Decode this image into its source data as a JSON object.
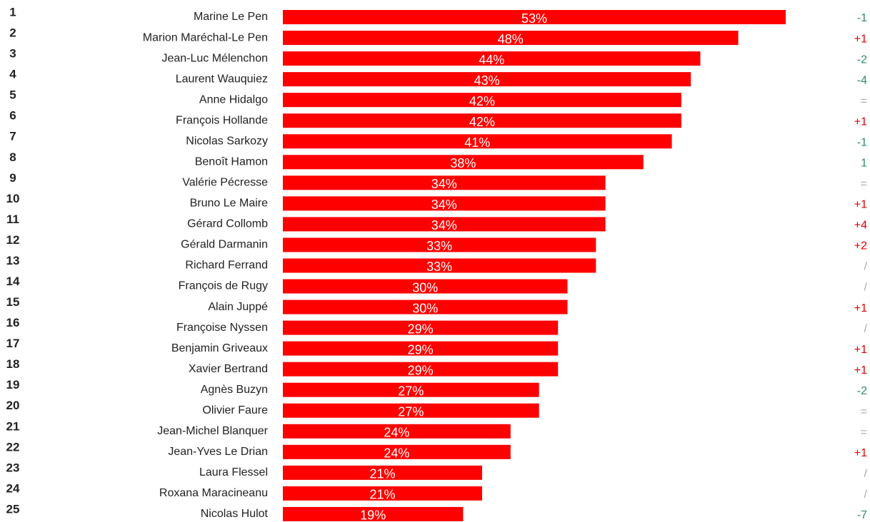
{
  "chart_data": {
    "type": "bar",
    "orientation": "horizontal",
    "color": "#ff0000",
    "ranks": [
      "1",
      "2",
      "3",
      "4",
      "5",
      "6",
      "7",
      "8",
      "9",
      "10",
      "11",
      "12",
      "13",
      "14",
      "15",
      "16",
      "17",
      "18",
      "19",
      "20",
      "21",
      "22",
      "23",
      "24",
      "25"
    ],
    "categories": [
      "Marine Le Pen",
      "Marion Maréchal-Le Pen",
      "Jean-Luc Mélenchon",
      "Laurent Wauquiez",
      "Anne Hidalgo",
      "François Hollande",
      "Nicolas Sarkozy",
      "Benoît Hamon",
      "Valérie Pécresse",
      "Bruno Le Maire",
      "Gérard Collomb",
      "Gérald Darmanin",
      "Richard Ferrand",
      "François de Rugy",
      "Alain Juppé",
      "Françoise Nyssen",
      "Benjamin Griveaux",
      "Xavier Bertrand",
      "Agnès Buzyn",
      "Olivier Faure",
      "Jean-Michel Blanquer",
      "Jean-Yves Le Drian",
      "Laura Flessel",
      "Roxana Maracineanu",
      "Nicolas Hulot"
    ],
    "values": [
      53,
      48,
      44,
      43,
      42,
      42,
      41,
      38,
      34,
      34,
      34,
      33,
      33,
      30,
      30,
      29,
      29,
      29,
      27,
      27,
      24,
      24,
      21,
      21,
      19
    ],
    "value_labels": [
      "53%",
      "48%",
      "44%",
      "43%",
      "42%",
      "42%",
      "41%",
      "38%",
      "34%",
      "34%",
      "34%",
      "33%",
      "33%",
      "30%",
      "30%",
      "29%",
      "29%",
      "29%",
      "27%",
      "27%",
      "24%",
      "24%",
      "21%",
      "21%",
      "19%"
    ],
    "changes": [
      "-1",
      "+1",
      "-2",
      "-4",
      "=",
      "+1",
      "-1",
      "1",
      "=",
      "+1",
      "+4",
      "+2",
      "/",
      "/",
      "+1",
      "/",
      "+1",
      "+1",
      "-2",
      "=",
      "=",
      "+1",
      "/",
      "/",
      "-7"
    ],
    "change_colors": [
      "#2e8b6e",
      "#e00000",
      "#2e8b6e",
      "#2e8b6e",
      "#aaaaaa",
      "#e00000",
      "#2e8b6e",
      "#2e8b6e",
      "#aaaaaa",
      "#e00000",
      "#e00000",
      "#e00000",
      "#aaaaaa",
      "#aaaaaa",
      "#e00000",
      "#aaaaaa",
      "#e00000",
      "#e00000",
      "#2e8b6e",
      "#aaaaaa",
      "#aaaaaa",
      "#e00000",
      "#aaaaaa",
      "#aaaaaa",
      "#2e8b6e"
    ]
  }
}
